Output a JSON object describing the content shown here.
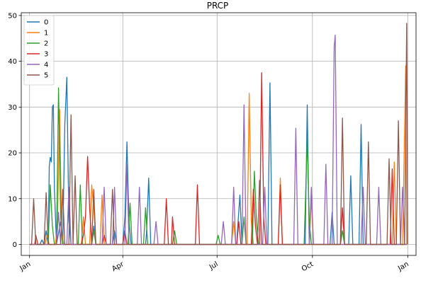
{
  "chart_data": {
    "type": "line",
    "title": "PRCP",
    "xlabel": "",
    "ylabel": "",
    "x_ticks": [
      "Jan",
      "Apr",
      "Jul",
      "Oct",
      "Jan"
    ],
    "y_ticks": [
      "0",
      "10",
      "20",
      "30",
      "40",
      "50"
    ],
    "xlim": [
      -8,
      373
    ],
    "ylim": [
      -2.4,
      50.6
    ],
    "grid": true,
    "legend_position": "top-left",
    "series": [
      {
        "name": "0",
        "color": "#1f77b4",
        "points": [
          [
            0,
            0
          ],
          [
            10,
            0
          ],
          [
            12,
            1
          ],
          [
            14,
            0
          ],
          [
            16,
            3
          ],
          [
            18,
            0
          ],
          [
            19,
            17
          ],
          [
            20,
            19
          ],
          [
            21,
            18
          ],
          [
            22,
            30
          ],
          [
            23,
            30.5
          ],
          [
            24,
            12
          ],
          [
            26,
            0
          ],
          [
            30,
            5
          ],
          [
            32,
            0
          ],
          [
            34,
            26
          ],
          [
            36,
            36.5
          ],
          [
            38,
            5
          ],
          [
            40,
            0
          ],
          [
            60,
            0
          ],
          [
            62,
            4
          ],
          [
            64,
            0
          ],
          [
            80,
            0
          ],
          [
            82,
            3
          ],
          [
            84,
            0
          ],
          [
            90,
            0
          ],
          [
            92,
            6
          ],
          [
            94,
            22.4
          ],
          [
            96,
            5
          ],
          [
            98,
            0
          ],
          [
            112,
            0
          ],
          [
            113,
            3
          ],
          [
            115,
            14.5
          ],
          [
            117,
            0
          ],
          [
            200,
            0
          ],
          [
            201,
            4
          ],
          [
            203,
            10.8
          ],
          [
            205,
            0
          ],
          [
            230,
            0
          ],
          [
            232,
            35.3
          ],
          [
            234,
            0
          ],
          [
            266,
            0
          ],
          [
            268,
            30.5
          ],
          [
            270,
            0
          ],
          [
            290,
            0
          ],
          [
            292,
            7
          ],
          [
            294,
            0
          ],
          [
            308,
            0
          ],
          [
            310,
            15
          ],
          [
            312,
            0
          ],
          [
            318,
            0
          ],
          [
            320,
            26.2
          ],
          [
            322,
            0
          ],
          [
            360,
            0
          ],
          [
            364,
            0
          ]
        ]
      },
      {
        "name": "1",
        "color": "#ff7f0e",
        "points": [
          [
            0,
            0
          ],
          [
            15,
            0
          ],
          [
            17,
            2
          ],
          [
            19,
            0
          ],
          [
            25,
            0
          ],
          [
            27,
            5
          ],
          [
            29,
            29.5
          ],
          [
            31,
            3
          ],
          [
            33,
            0
          ],
          [
            50,
            0
          ],
          [
            52,
            6
          ],
          [
            54,
            0
          ],
          [
            58,
            0
          ],
          [
            60,
            13
          ],
          [
            62,
            8
          ],
          [
            64,
            0
          ],
          [
            68,
            0
          ],
          [
            70,
            10.8
          ],
          [
            72,
            0
          ],
          [
            195,
            0
          ],
          [
            197,
            5
          ],
          [
            199,
            0
          ],
          [
            210,
            0
          ],
          [
            212,
            33
          ],
          [
            214,
            5
          ],
          [
            216,
            0
          ],
          [
            240,
            0
          ],
          [
            242,
            14.5
          ],
          [
            244,
            0
          ],
          [
            270,
            0
          ],
          [
            272,
            10
          ],
          [
            274,
            0
          ],
          [
            350,
            0
          ],
          [
            352,
            18
          ],
          [
            354,
            0
          ],
          [
            360,
            0
          ],
          [
            363,
            39
          ],
          [
            364,
            0
          ]
        ]
      },
      {
        "name": "2",
        "color": "#2ca02c",
        "points": [
          [
            0,
            0
          ],
          [
            18,
            0
          ],
          [
            20,
            13
          ],
          [
            22,
            4
          ],
          [
            24,
            0
          ],
          [
            26,
            0
          ],
          [
            28,
            34.2
          ],
          [
            30,
            6
          ],
          [
            32,
            0
          ],
          [
            47,
            0
          ],
          [
            49,
            13
          ],
          [
            51,
            0
          ],
          [
            60,
            0
          ],
          [
            62,
            3
          ],
          [
            64,
            0
          ],
          [
            95,
            0
          ],
          [
            97,
            9
          ],
          [
            99,
            0
          ],
          [
            110,
            0
          ],
          [
            112,
            8
          ],
          [
            114,
            0
          ],
          [
            138,
            0
          ],
          [
            140,
            3
          ],
          [
            142,
            0
          ],
          [
            180,
            0
          ],
          [
            182,
            2
          ],
          [
            184,
            0
          ],
          [
            205,
            0
          ],
          [
            207,
            6
          ],
          [
            209,
            0
          ],
          [
            215,
            0
          ],
          [
            217,
            16
          ],
          [
            219,
            5
          ],
          [
            221,
            0
          ],
          [
            265,
            0
          ],
          [
            268,
            23
          ],
          [
            270,
            5
          ],
          [
            272,
            0
          ],
          [
            300,
            0
          ],
          [
            302,
            3
          ],
          [
            304,
            0
          ],
          [
            364,
            0
          ]
        ]
      },
      {
        "name": "3",
        "color": "#d62728",
        "points": [
          [
            0,
            0
          ],
          [
            5,
            0
          ],
          [
            6,
            2
          ],
          [
            8,
            0
          ],
          [
            50,
            0
          ],
          [
            52,
            2
          ],
          [
            54,
            6
          ],
          [
            56,
            19.2
          ],
          [
            58,
            8
          ],
          [
            60,
            0
          ],
          [
            70,
            0
          ],
          [
            72,
            2
          ],
          [
            74,
            0
          ],
          [
            90,
            0
          ],
          [
            92,
            3
          ],
          [
            94,
            0
          ],
          [
            130,
            0
          ],
          [
            132,
            10
          ],
          [
            134,
            0
          ],
          [
            137,
            0
          ],
          [
            138,
            6
          ],
          [
            140,
            0
          ],
          [
            160,
            0
          ],
          [
            162,
            13
          ],
          [
            164,
            0
          ],
          [
            200,
            0
          ],
          [
            202,
            5
          ],
          [
            204,
            0
          ],
          [
            214,
            0
          ],
          [
            216,
            12
          ],
          [
            218,
            4
          ],
          [
            220,
            0
          ],
          [
            222,
            0
          ],
          [
            224,
            37.5
          ],
          [
            226,
            6
          ],
          [
            228,
            0
          ],
          [
            240,
            0
          ],
          [
            242,
            13
          ],
          [
            244,
            0
          ],
          [
            300,
            0
          ],
          [
            302,
            8
          ],
          [
            304,
            0
          ],
          [
            348,
            0
          ],
          [
            350,
            16.5
          ],
          [
            352,
            0
          ],
          [
            364,
            0
          ]
        ]
      },
      {
        "name": "4",
        "color": "#9467bd",
        "points": [
          [
            0,
            0
          ],
          [
            26,
            0
          ],
          [
            28,
            7
          ],
          [
            30,
            0
          ],
          [
            36,
            0
          ],
          [
            38,
            12.5
          ],
          [
            40,
            0
          ],
          [
            70,
            0
          ],
          [
            72,
            12.5
          ],
          [
            74,
            0
          ],
          [
            80,
            0
          ],
          [
            82,
            12.5
          ],
          [
            84,
            0
          ],
          [
            92,
            0
          ],
          [
            94,
            17.5
          ],
          [
            96,
            0
          ],
          [
            104,
            0
          ],
          [
            106,
            12.5
          ],
          [
            108,
            0
          ],
          [
            120,
            0
          ],
          [
            122,
            5
          ],
          [
            124,
            0
          ],
          [
            185,
            0
          ],
          [
            187,
            5
          ],
          [
            189,
            0
          ],
          [
            195,
            0
          ],
          [
            197,
            12.5
          ],
          [
            199,
            0
          ],
          [
            205,
            0
          ],
          [
            207,
            30.5
          ],
          [
            209,
            0
          ],
          [
            225,
            0
          ],
          [
            227,
            12.5
          ],
          [
            229,
            0
          ],
          [
            255,
            0
          ],
          [
            257,
            25.4
          ],
          [
            259,
            0
          ],
          [
            270,
            0
          ],
          [
            272,
            12.5
          ],
          [
            274,
            0
          ],
          [
            284,
            0
          ],
          [
            286,
            17.5
          ],
          [
            288,
            0
          ],
          [
            292,
            0
          ],
          [
            294,
            43.2
          ],
          [
            295,
            45.7
          ],
          [
            297,
            0
          ],
          [
            320,
            0
          ],
          [
            322,
            12.5
          ],
          [
            324,
            0
          ],
          [
            335,
            0
          ],
          [
            337,
            12.5
          ],
          [
            339,
            0
          ],
          [
            358,
            0
          ],
          [
            360,
            12.5
          ],
          [
            362,
            0
          ],
          [
            364,
            0
          ]
        ]
      },
      {
        "name": "5",
        "color": "#8c564b",
        "points": [
          [
            0,
            0
          ],
          [
            2,
            0
          ],
          [
            4,
            10
          ],
          [
            6,
            0
          ],
          [
            14,
            0
          ],
          [
            16,
            11.3
          ],
          [
            18,
            0
          ],
          [
            30,
            0
          ],
          [
            32,
            12
          ],
          [
            34,
            0
          ],
          [
            38,
            0
          ],
          [
            40,
            28.3
          ],
          [
            42,
            0
          ],
          [
            44,
            15
          ],
          [
            46,
            0
          ],
          [
            60,
            0
          ],
          [
            62,
            12
          ],
          [
            64,
            0
          ],
          [
            78,
            0
          ],
          [
            80,
            12
          ],
          [
            82,
            0
          ],
          [
            220,
            0
          ],
          [
            222,
            14
          ],
          [
            224,
            0
          ],
          [
            300,
            0
          ],
          [
            302,
            27.6
          ],
          [
            304,
            0
          ],
          [
            325,
            0
          ],
          [
            327,
            22.4
          ],
          [
            329,
            0
          ],
          [
            345,
            0
          ],
          [
            347,
            18.7
          ],
          [
            349,
            0
          ],
          [
            354,
            0
          ],
          [
            356,
            27
          ],
          [
            358,
            0
          ],
          [
            362,
            0
          ],
          [
            364,
            48.3
          ],
          [
            365,
            0
          ]
        ]
      }
    ]
  }
}
